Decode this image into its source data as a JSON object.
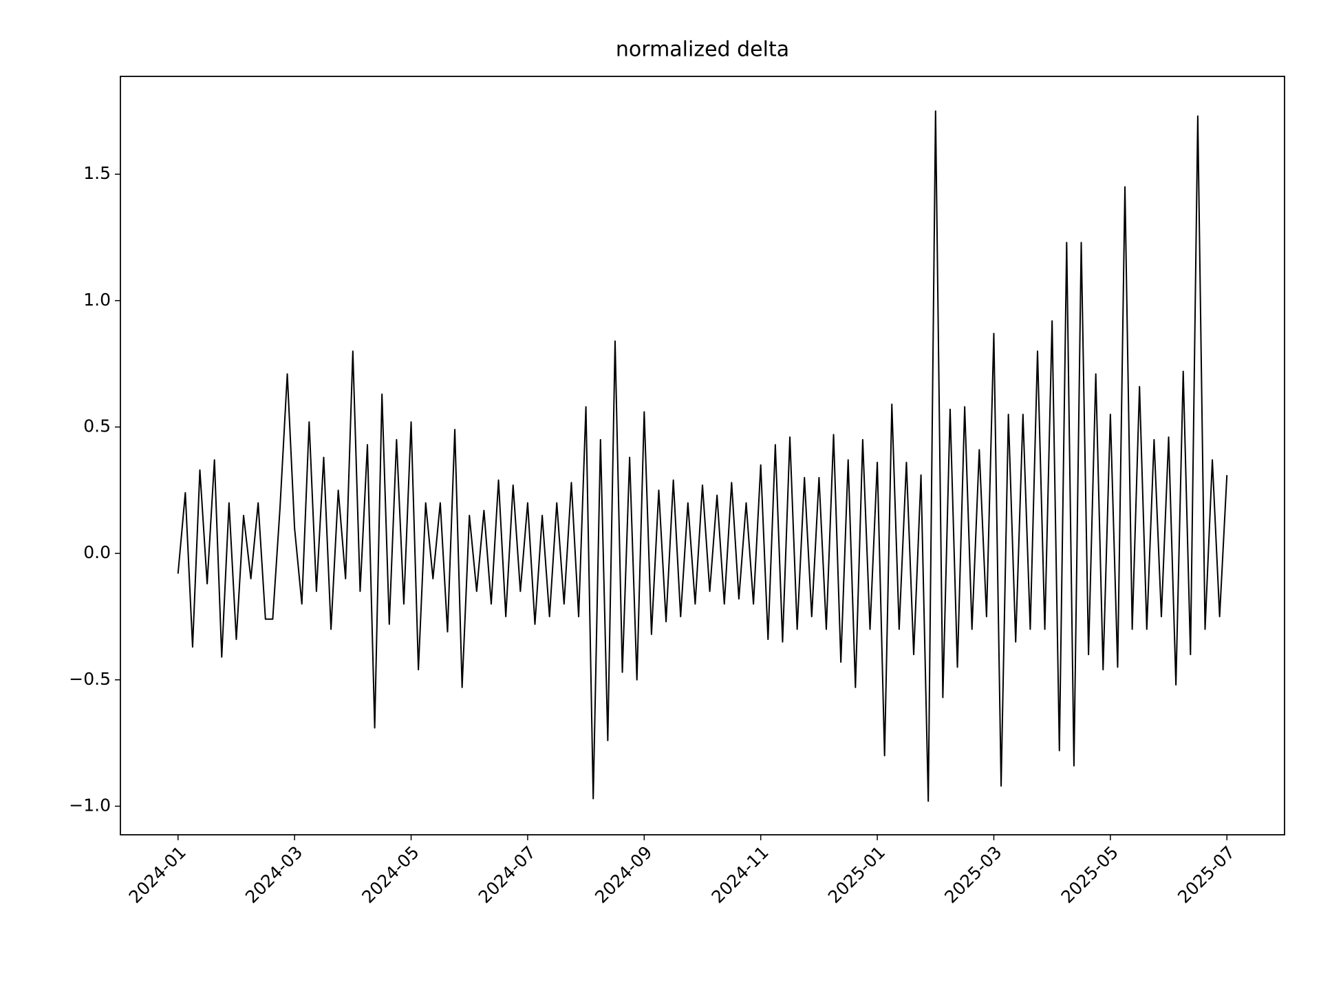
{
  "chart_data": {
    "type": "line",
    "title": "normalized delta",
    "x": [
      "2024-01",
      "2024-01",
      "2024-01",
      "2024-01",
      "2024-01",
      "2024-01",
      "2024-01",
      "2024-01",
      "2024-02",
      "2024-02",
      "2024-02",
      "2024-02",
      "2024-02",
      "2024-02",
      "2024-02",
      "2024-02",
      "2024-03",
      "2024-03",
      "2024-03",
      "2024-03",
      "2024-03",
      "2024-03",
      "2024-03",
      "2024-03",
      "2024-04",
      "2024-04",
      "2024-04",
      "2024-04",
      "2024-04",
      "2024-04",
      "2024-04",
      "2024-04",
      "2024-05",
      "2024-05",
      "2024-05",
      "2024-05",
      "2024-05",
      "2024-05",
      "2024-05",
      "2024-05",
      "2024-06",
      "2024-06",
      "2024-06",
      "2024-06",
      "2024-06",
      "2024-06",
      "2024-06",
      "2024-06",
      "2024-07",
      "2024-07",
      "2024-07",
      "2024-07",
      "2024-07",
      "2024-07",
      "2024-07",
      "2024-07",
      "2024-08",
      "2024-08",
      "2024-08",
      "2024-08",
      "2024-08",
      "2024-08",
      "2024-08",
      "2024-08",
      "2024-09",
      "2024-09",
      "2024-09",
      "2024-09",
      "2024-09",
      "2024-09",
      "2024-09",
      "2024-09",
      "2024-10",
      "2024-10",
      "2024-10",
      "2024-10",
      "2024-10",
      "2024-10",
      "2024-10",
      "2024-10",
      "2024-11",
      "2024-11",
      "2024-11",
      "2024-11",
      "2024-11",
      "2024-11",
      "2024-11",
      "2024-11",
      "2024-12",
      "2024-12",
      "2024-12",
      "2024-12",
      "2024-12",
      "2024-12",
      "2024-12",
      "2024-12",
      "2025-01",
      "2025-01",
      "2025-01",
      "2025-01",
      "2025-01",
      "2025-01",
      "2025-01",
      "2025-01",
      "2025-02",
      "2025-02",
      "2025-02",
      "2025-02",
      "2025-02",
      "2025-02",
      "2025-02",
      "2025-02",
      "2025-03",
      "2025-03",
      "2025-03",
      "2025-03",
      "2025-03",
      "2025-03",
      "2025-03",
      "2025-03",
      "2025-04",
      "2025-04",
      "2025-04",
      "2025-04",
      "2025-04",
      "2025-04",
      "2025-04",
      "2025-04",
      "2025-05",
      "2025-05",
      "2025-05",
      "2025-05",
      "2025-05",
      "2025-05",
      "2025-05",
      "2025-05",
      "2025-06",
      "2025-06",
      "2025-06",
      "2025-06",
      "2025-06",
      "2025-06",
      "2025-06",
      "2025-06",
      "2025-07"
    ],
    "series": [
      {
        "name": "normalized delta",
        "color": "#000000",
        "values": [
          -0.08,
          0.24,
          -0.37,
          0.33,
          -0.12,
          0.37,
          -0.41,
          0.2,
          -0.34,
          0.15,
          -0.1,
          0.2,
          -0.26,
          -0.26,
          0.18,
          0.71,
          0.1,
          -0.2,
          0.52,
          -0.15,
          0.38,
          -0.3,
          0.25,
          -0.1,
          0.8,
          -0.15,
          0.43,
          -0.69,
          0.63,
          -0.28,
          0.45,
          -0.2,
          0.52,
          -0.46,
          0.2,
          -0.1,
          0.2,
          -0.31,
          0.49,
          -0.53,
          0.15,
          -0.15,
          0.17,
          -0.2,
          0.29,
          -0.25,
          0.27,
          -0.15,
          0.2,
          -0.28,
          0.15,
          -0.25,
          0.2,
          -0.2,
          0.28,
          -0.25,
          0.58,
          -0.97,
          0.45,
          -0.74,
          0.84,
          -0.47,
          0.38,
          -0.5,
          0.56,
          -0.32,
          0.25,
          -0.27,
          0.29,
          -0.25,
          0.2,
          -0.2,
          0.27,
          -0.15,
          0.23,
          -0.2,
          0.28,
          -0.18,
          0.2,
          -0.2,
          0.35,
          -0.34,
          0.43,
          -0.35,
          0.46,
          -0.3,
          0.3,
          -0.25,
          0.3,
          -0.3,
          0.47,
          -0.43,
          0.37,
          -0.53,
          0.45,
          -0.3,
          0.36,
          -0.8,
          0.59,
          -0.3,
          0.36,
          -0.4,
          0.31,
          -0.98,
          1.75,
          -0.57,
          0.57,
          -0.45,
          0.58,
          -0.3,
          0.41,
          -0.25,
          0.87,
          -0.92,
          0.55,
          -0.35,
          0.55,
          -0.3,
          0.8,
          -0.3,
          0.92,
          -0.78,
          1.23,
          -0.84,
          1.23,
          -0.4,
          0.71,
          -0.46,
          0.55,
          -0.45,
          1.45,
          -0.3,
          0.66,
          -0.3,
          0.45,
          -0.25,
          0.46,
          -0.52,
          0.72,
          -0.4,
          1.73,
          -0.3,
          0.37,
          -0.25,
          0.31
        ]
      }
    ],
    "xticks": [
      "2024-01",
      "2024-03",
      "2024-05",
      "2024-07",
      "2024-09",
      "2024-11",
      "2025-01",
      "2025-03",
      "2025-05",
      "2025-07"
    ],
    "ylim": [
      -1.113,
      1.887
    ],
    "yticks": [
      {
        "value": -1,
        "label": "−1.0"
      },
      {
        "value": -0.5,
        "label": "−0.5"
      },
      {
        "value": 0,
        "label": "0.0"
      },
      {
        "value": 0.5,
        "label": "0.5"
      },
      {
        "value": 1,
        "label": "1.0"
      },
      {
        "value": 1.5,
        "label": "1.5"
      }
    ],
    "grid": false
  }
}
